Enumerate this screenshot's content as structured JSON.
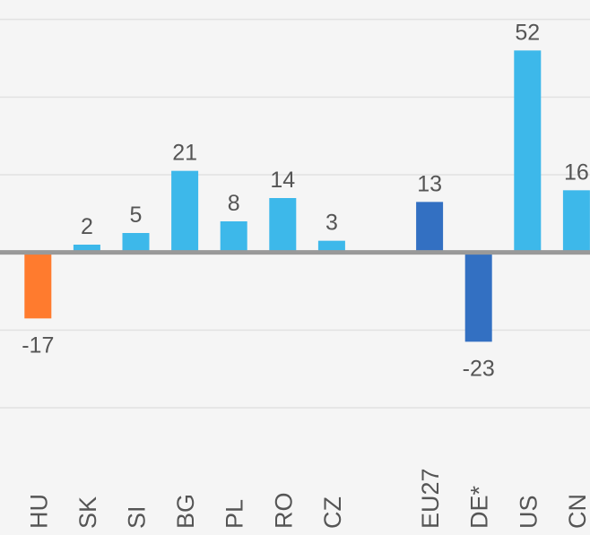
{
  "chart_data": {
    "type": "bar",
    "categories": [
      "HU",
      "SK",
      "SI",
      "BG",
      "PL",
      "RO",
      "CZ",
      null,
      "EU27",
      "DE*",
      "US",
      "CN"
    ],
    "values": [
      -17,
      2,
      5,
      21,
      8,
      14,
      3,
      null,
      13,
      -23,
      52,
      16
    ],
    "colors": [
      "#ff7b2e",
      "#3db8ea",
      "#3db8ea",
      "#3db8ea",
      "#3db8ea",
      "#3db8ea",
      "#3db8ea",
      null,
      "#3370c2",
      "#3370c2",
      "#3db8ea",
      "#3db8ea"
    ],
    "ylim": [
      -40,
      65
    ],
    "yticks": [
      -40,
      -20,
      0,
      20,
      40,
      60
    ],
    "grid": true
  }
}
